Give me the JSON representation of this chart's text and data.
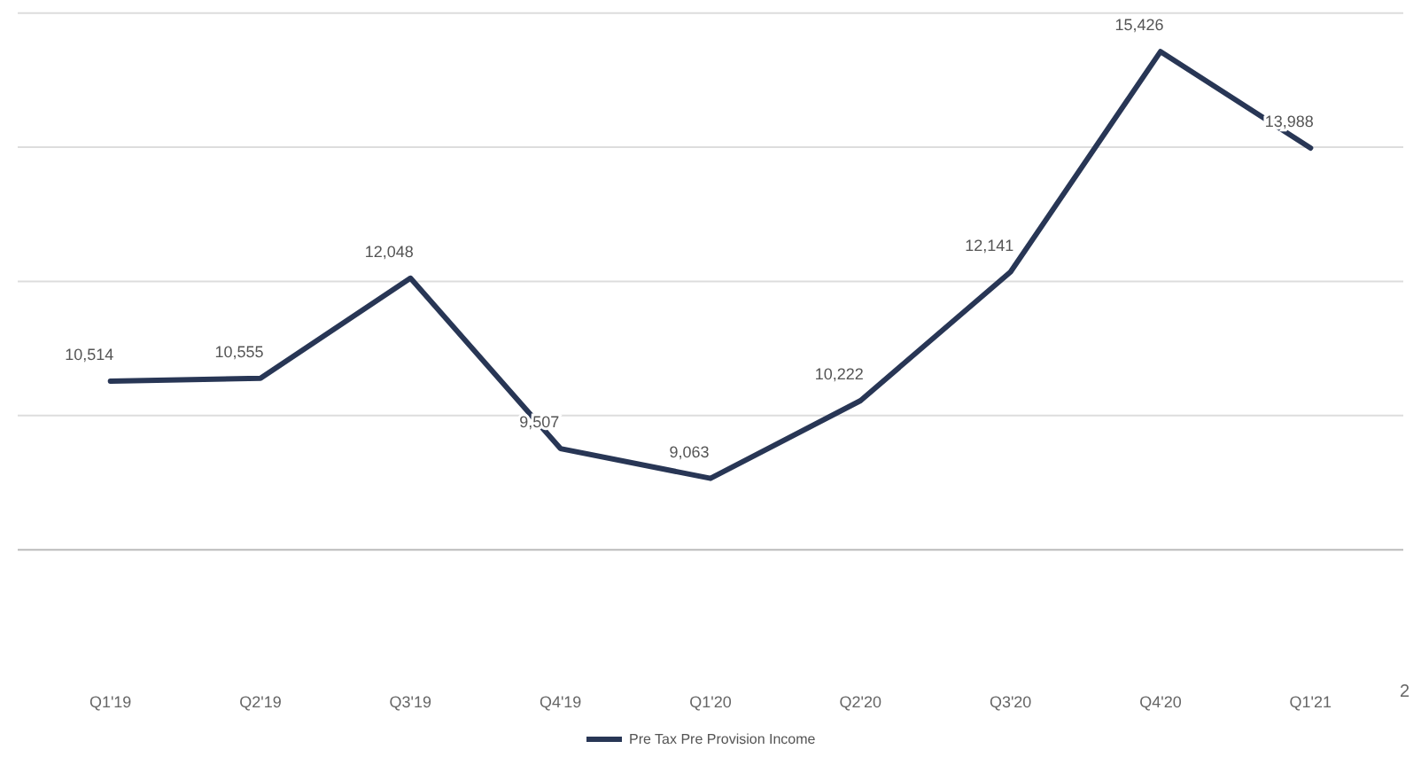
{
  "chart_data": {
    "type": "line",
    "categories": [
      "Q1'19",
      "Q2'19",
      "Q3'19",
      "Q4'19",
      "Q1'20",
      "Q2'20",
      "Q3'20",
      "Q4'20",
      "Q1'21"
    ],
    "series": [
      {
        "name": "Pre Tax Pre Provision Income",
        "color": "#283655",
        "values": [
          10514,
          10555,
          12048,
          9507,
          9063,
          10222,
          12141,
          15426,
          13988
        ],
        "value_labels": [
          "10,514",
          "10,555",
          "12,048",
          "9,507",
          "9,063",
          "10,222",
          "12,141",
          "15,426",
          "13,988"
        ]
      }
    ],
    "tick_labels": "x",
    "grid": "y",
    "legend": "bottom",
    "marker": "none",
    "line_style": "solid",
    "annotations": [
      "2"
    ]
  }
}
